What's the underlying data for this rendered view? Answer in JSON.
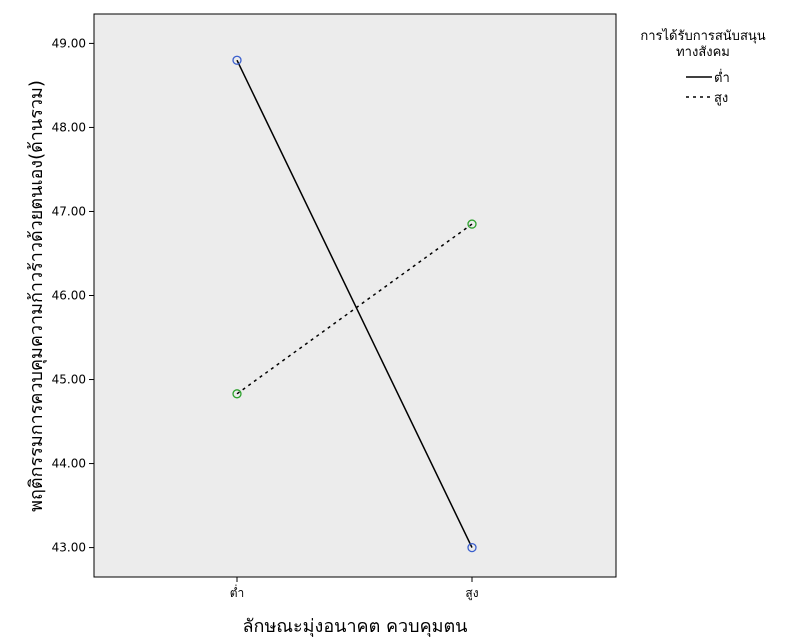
{
  "chart_data": {
    "type": "line",
    "title": "",
    "xlabel": "ลักษณะมุ่งอนาคต ควบคุมตน",
    "ylabel": "พฤติกรรมการควบคุมความก้าวร้าวด้วยตนเอง(ด้านรวม)",
    "categories": [
      "ต่ำ",
      "สูง"
    ],
    "ylim": [
      42.65,
      49.35
    ],
    "yticks": [
      "43.00",
      "44.00",
      "45.00",
      "46.00",
      "47.00",
      "48.00",
      "49.00"
    ],
    "ytick_values": [
      43,
      44,
      45,
      46,
      47,
      48,
      49
    ],
    "grid": false,
    "legend_position": "top-right",
    "legend_title": [
      "การได้รับการสนับสนุน",
      "ทางสังคม"
    ],
    "series": [
      {
        "name": "ต่ำ",
        "values": [
          48.8,
          43.0
        ],
        "line_style": "solid",
        "line_color": "#000000",
        "marker_color": "#3a5fcd"
      },
      {
        "name": "สูง",
        "values": [
          44.83,
          46.85
        ],
        "line_style": "dashed",
        "line_color": "#000000",
        "marker_color": "#2ca02c"
      }
    ]
  },
  "colors": {
    "plot_background": "#ececec",
    "frame": "#000000"
  }
}
